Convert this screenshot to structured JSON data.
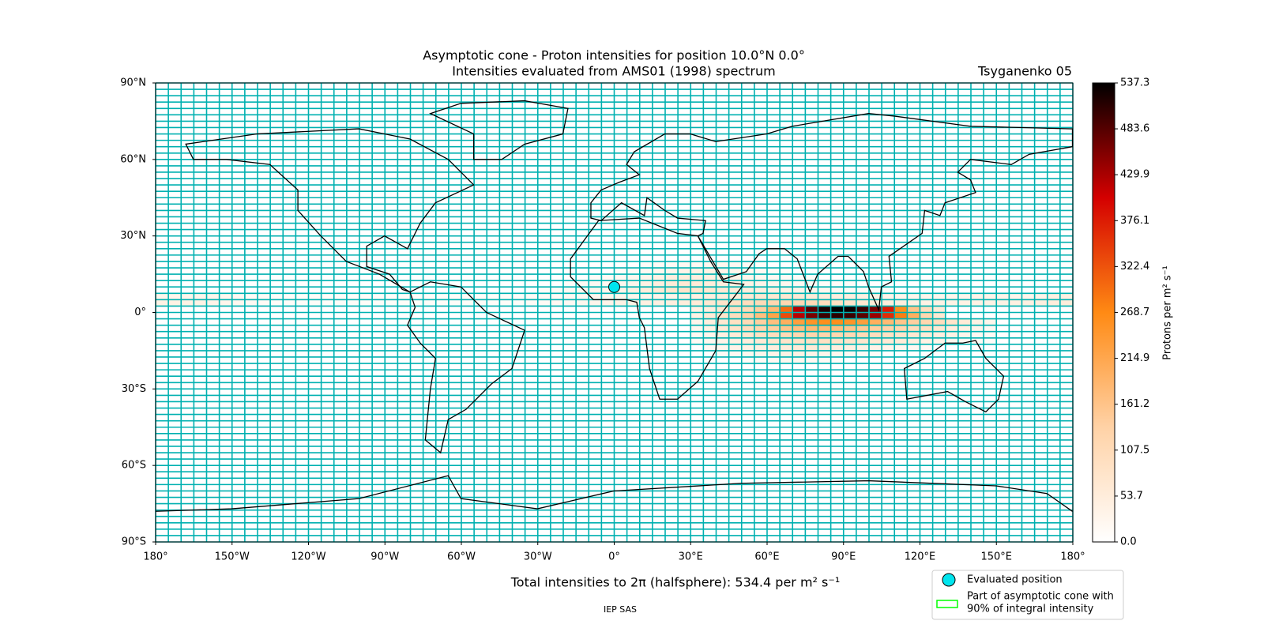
{
  "chart_data": {
    "type": "heatmap",
    "title": "Asymptotic cone - Proton intensities for position 10.0°N 0.0°",
    "subtitle": "Intensities evaluated from AMS01 (1998) spectrum",
    "model": "Tsyganenko 05",
    "footer": "Total intensities to 2π (halfsphere): 534.4 per m² s⁻¹",
    "credit": "IEP SAS",
    "xlim": [
      -180,
      180
    ],
    "ylim": [
      -90,
      90
    ],
    "xticks": [
      {
        "value": -180,
        "label": "180°"
      },
      {
        "value": -150,
        "label": "150°W"
      },
      {
        "value": -120,
        "label": "120°W"
      },
      {
        "value": -90,
        "label": "90°W"
      },
      {
        "value": -60,
        "label": "60°W"
      },
      {
        "value": -30,
        "label": "30°W"
      },
      {
        "value": 0,
        "label": "0°"
      },
      {
        "value": 30,
        "label": "30°E"
      },
      {
        "value": 60,
        "label": "60°E"
      },
      {
        "value": 90,
        "label": "90°E"
      },
      {
        "value": 120,
        "label": "120°E"
      },
      {
        "value": 150,
        "label": "150°E"
      },
      {
        "value": 180,
        "label": "180°"
      }
    ],
    "yticks": [
      {
        "value": 90,
        "label": "90°N"
      },
      {
        "value": 60,
        "label": "60°N"
      },
      {
        "value": 30,
        "label": "30°N"
      },
      {
        "value": 0,
        "label": "0°"
      },
      {
        "value": -30,
        "label": "30°S"
      },
      {
        "value": -60,
        "label": "60°S"
      },
      {
        "value": -90,
        "label": "90°S"
      }
    ],
    "grid_color": "#00b0b0",
    "colormap": [
      "#ffffff",
      "#ffd2a6",
      "#ff8a14",
      "#d40000",
      "#000000"
    ],
    "colorbar": {
      "label": "Protons per m² s⁻¹",
      "lim": [
        0,
        537.3
      ],
      "ticks": [
        {
          "value": 0,
          "label": "0.0"
        },
        53.7,
        107.5,
        161.2,
        214.9,
        268.7,
        322.4,
        376.1,
        429.9,
        483.6,
        537.3
      ]
    },
    "position": {
      "lat": 10,
      "lon": 0,
      "color": "#00e5ee"
    },
    "legend": [
      {
        "name": "Evaluated position",
        "color": "#00e5ee"
      },
      {
        "lines": [
          "Part of asymptotic cone with",
          "90% of integral intensity"
        ],
        "color": "#00ff00"
      }
    ],
    "cells": [
      {
        "lat": 20,
        "lon": 10,
        "values": [
          10,
          15,
          15,
          20,
          20,
          25,
          25,
          20,
          15,
          10
        ]
      },
      {
        "lat": 17.5,
        "lon": 0,
        "values": [
          10,
          15,
          20,
          25,
          30,
          35,
          40,
          40,
          35,
          30,
          25,
          20,
          15,
          10
        ]
      },
      {
        "lat": 15,
        "lon": -10,
        "values": [
          10,
          15,
          20,
          25,
          30,
          40,
          50,
          55,
          50,
          45,
          40,
          35,
          30,
          25,
          20,
          15,
          10,
          10
        ]
      },
      {
        "lat": 12.5,
        "lon": -20,
        "values": [
          10,
          15,
          20,
          20,
          25,
          30,
          40,
          50,
          60,
          65,
          60,
          55,
          50,
          45,
          40,
          35,
          30,
          25,
          20,
          15,
          10,
          10,
          10
        ]
      },
      {
        "lat": 10,
        "lon": -30,
        "values": [
          10,
          15,
          20,
          25,
          30,
          30,
          35,
          45,
          55,
          65,
          75,
          80,
          75,
          70,
          65,
          60,
          55,
          50,
          45,
          40,
          35,
          30,
          25,
          20,
          15,
          15,
          10,
          10
        ]
      },
      {
        "lat": 7.5,
        "lon": -180,
        "values": [
          30,
          30,
          30,
          30,
          30,
          25,
          20,
          15,
          15,
          10,
          10,
          10,
          10,
          10,
          10,
          10,
          10,
          10,
          10,
          10,
          10,
          10,
          10,
          10,
          10,
          10,
          10,
          10,
          10,
          15,
          15,
          15,
          20,
          20,
          25,
          25,
          30,
          30,
          30,
          35,
          35,
          40,
          45,
          50,
          55,
          60,
          65,
          70,
          70,
          70,
          65,
          60,
          55,
          50,
          50,
          45,
          40,
          35,
          30,
          30,
          30,
          30,
          30,
          30,
          35,
          35,
          35,
          30,
          30,
          35,
          45,
          45
        ]
      },
      {
        "lat": 5,
        "lon": -180,
        "values": [
          40,
          40,
          40,
          40,
          35,
          30,
          25,
          20,
          15,
          10,
          10,
          10,
          10,
          10,
          10,
          10,
          10,
          10,
          10,
          10,
          10,
          10,
          10,
          10,
          10,
          10,
          10,
          10,
          10,
          15,
          15,
          20,
          20,
          25,
          30,
          35,
          40,
          40,
          45,
          45,
          50,
          55,
          60,
          70,
          80,
          90,
          100,
          110,
          120,
          120,
          115,
          110,
          100,
          90,
          80,
          70,
          60,
          55,
          50,
          45,
          40,
          40,
          40,
          40,
          40,
          40,
          40,
          45,
          45,
          50,
          55,
          55
        ]
      },
      {
        "lat": 2.5,
        "lon": 30,
        "values": [
          40,
          50,
          70,
          90,
          110,
          140,
          180,
          300,
          420,
          480,
          520,
          537.3,
          530,
          500,
          460,
          380,
          260,
          160,
          100,
          60
        ]
      },
      {
        "lat": 0,
        "lon": 30,
        "values": [
          40,
          60,
          80,
          100,
          130,
          170,
          220,
          330,
          420,
          460,
          500,
          510,
          500,
          480,
          440,
          360,
          280,
          200,
          120,
          70
        ]
      },
      {
        "lat": -2.5,
        "lon": 30,
        "values": [
          30,
          50,
          70,
          90,
          110,
          140,
          170,
          200,
          230,
          250,
          260,
          260,
          250,
          230,
          200,
          180,
          160,
          140,
          120,
          100,
          80,
          60,
          40,
          30
        ]
      },
      {
        "lat": -5,
        "lon": 30,
        "values": [
          25,
          40,
          60,
          80,
          100,
          120,
          140,
          160,
          170,
          180,
          180,
          170,
          160,
          150,
          140,
          130,
          120,
          100,
          90,
          70,
          50,
          40,
          30,
          20
        ]
      },
      {
        "lat": -7.5,
        "lon": 30,
        "values": [
          20,
          30,
          45,
          60,
          75,
          90,
          100,
          110,
          120,
          125,
          125,
          120,
          115,
          110,
          100,
          90,
          80,
          70,
          60,
          50,
          40,
          30,
          20,
          15
        ]
      },
      {
        "lat": -10,
        "lon": 30,
        "values": [
          15,
          25,
          35,
          45,
          55,
          65,
          75,
          80,
          85,
          90,
          90,
          85,
          80,
          75,
          70,
          65,
          60,
          50,
          40,
          35,
          25,
          20,
          15,
          10
        ]
      },
      {
        "lat": -12.5,
        "lon": 35,
        "values": [
          20,
          25,
          35,
          40,
          45,
          50,
          55,
          60,
          60,
          55,
          50,
          45,
          40,
          35,
          30,
          25,
          20,
          15
        ]
      },
      {
        "lat": -15,
        "lon": 40,
        "values": [
          15,
          20,
          25,
          30,
          35,
          40,
          40,
          35,
          30,
          25,
          20,
          15,
          10
        ]
      },
      {
        "lat": -17.5,
        "lon": 50,
        "values": [
          10,
          15,
          20,
          25,
          25,
          20,
          15,
          10
        ]
      }
    ]
  }
}
